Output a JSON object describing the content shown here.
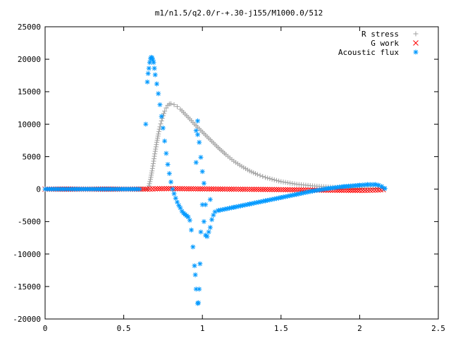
{
  "chart_data": {
    "type": "scatter",
    "title": "m1/n1.5/q2.0/r-+.30-j155/M1000.0/512",
    "xlabel": "",
    "ylabel": "",
    "xlim": [
      0,
      2.5
    ],
    "ylim": [
      -20000,
      25000
    ],
    "x_ticks": [
      0,
      0.5,
      1,
      1.5,
      2,
      2.5
    ],
    "y_ticks": [
      -20000,
      -15000,
      -10000,
      -5000,
      0,
      5000,
      10000,
      15000,
      20000,
      25000
    ],
    "grid": false,
    "legend_position": "top-right",
    "series": [
      {
        "name": "R stress",
        "marker": "plus",
        "color": "#a0a0a0",
        "points": [
          [
            0.0,
            0
          ],
          [
            0.1,
            0
          ],
          [
            0.2,
            0
          ],
          [
            0.3,
            0
          ],
          [
            0.4,
            0
          ],
          [
            0.5,
            0
          ],
          [
            0.6,
            0
          ],
          [
            0.65,
            0
          ],
          [
            0.66,
            500
          ],
          [
            0.67,
            1500
          ],
          [
            0.68,
            2800
          ],
          [
            0.69,
            4300
          ],
          [
            0.7,
            5800
          ],
          [
            0.71,
            7200
          ],
          [
            0.72,
            8500
          ],
          [
            0.73,
            9600
          ],
          [
            0.74,
            10500
          ],
          [
            0.75,
            11300
          ],
          [
            0.76,
            12000
          ],
          [
            0.77,
            12500
          ],
          [
            0.78,
            12900
          ],
          [
            0.79,
            13100
          ],
          [
            0.8,
            13150
          ],
          [
            0.82,
            13000
          ],
          [
            0.84,
            12700
          ],
          [
            0.86,
            12300
          ],
          [
            0.88,
            11800
          ],
          [
            0.9,
            11300
          ],
          [
            0.92,
            10800
          ],
          [
            0.95,
            10000
          ],
          [
            1.0,
            8800
          ],
          [
            1.05,
            7600
          ],
          [
            1.1,
            6400
          ],
          [
            1.15,
            5300
          ],
          [
            1.2,
            4300
          ],
          [
            1.25,
            3500
          ],
          [
            1.3,
            2800
          ],
          [
            1.35,
            2250
          ],
          [
            1.4,
            1800
          ],
          [
            1.5,
            1150
          ],
          [
            1.6,
            750
          ],
          [
            1.7,
            500
          ],
          [
            1.8,
            330
          ],
          [
            1.9,
            220
          ],
          [
            2.0,
            140
          ],
          [
            2.1,
            90
          ],
          [
            2.15,
            50
          ]
        ]
      },
      {
        "name": "G work",
        "marker": "cross",
        "color": "#ff0000",
        "points": [
          [
            0.0,
            0
          ],
          [
            0.65,
            0
          ],
          [
            0.7,
            50
          ],
          [
            0.8,
            80
          ],
          [
            0.9,
            50
          ],
          [
            1.0,
            30
          ],
          [
            1.1,
            10
          ],
          [
            1.2,
            -10
          ],
          [
            1.3,
            -30
          ],
          [
            1.4,
            -50
          ],
          [
            1.5,
            -80
          ],
          [
            1.6,
            -110
          ],
          [
            1.7,
            -140
          ],
          [
            1.8,
            -170
          ],
          [
            1.9,
            -190
          ],
          [
            2.0,
            -200
          ],
          [
            2.05,
            -190
          ],
          [
            2.1,
            -150
          ],
          [
            2.15,
            -80
          ]
        ]
      },
      {
        "name": "Acoustic flux",
        "marker": "star",
        "color": "#0099ff",
        "points": [
          [
            0.0,
            0
          ],
          [
            0.1,
            0
          ],
          [
            0.2,
            0
          ],
          [
            0.3,
            0
          ],
          [
            0.4,
            0
          ],
          [
            0.5,
            0
          ],
          [
            0.6,
            0
          ],
          [
            0.64,
            10000
          ],
          [
            0.65,
            16500
          ],
          [
            0.655,
            17800
          ],
          [
            0.66,
            18600
          ],
          [
            0.665,
            19500
          ],
          [
            0.67,
            20100
          ],
          [
            0.675,
            20300
          ],
          [
            0.68,
            20200
          ],
          [
            0.685,
            19900
          ],
          [
            0.69,
            19500
          ],
          [
            0.695,
            18600
          ],
          [
            0.7,
            17600
          ],
          [
            0.71,
            16200
          ],
          [
            0.72,
            14700
          ],
          [
            0.73,
            13000
          ],
          [
            0.74,
            11200
          ],
          [
            0.75,
            9400
          ],
          [
            0.76,
            7400
          ],
          [
            0.77,
            5500
          ],
          [
            0.78,
            3800
          ],
          [
            0.79,
            2400
          ],
          [
            0.8,
            1100
          ],
          [
            0.81,
            0
          ],
          [
            0.82,
            -700
          ],
          [
            0.83,
            -1400
          ],
          [
            0.84,
            -2000
          ],
          [
            0.85,
            -2500
          ],
          [
            0.86,
            -2900
          ],
          [
            0.87,
            -3400
          ],
          [
            0.88,
            -3700
          ],
          [
            0.89,
            -3900
          ],
          [
            0.9,
            -4100
          ],
          [
            0.91,
            -4300
          ],
          [
            0.92,
            -4800
          ],
          [
            0.93,
            -6300
          ],
          [
            0.94,
            -8900
          ],
          [
            0.95,
            -11800
          ],
          [
            0.955,
            -13200
          ],
          [
            0.96,
            -15400
          ],
          [
            0.97,
            -17600
          ],
          [
            0.975,
            -17500
          ],
          [
            0.98,
            -15400
          ],
          [
            0.985,
            -11500
          ],
          [
            0.99,
            -6600
          ],
          [
            1.0,
            -2400
          ],
          [
            1.01,
            -5000
          ],
          [
            1.02,
            -7100
          ],
          [
            1.03,
            -7300
          ],
          [
            1.04,
            -6600
          ],
          [
            1.05,
            -5900
          ],
          [
            1.06,
            -4700
          ],
          [
            1.07,
            -4000
          ],
          [
            1.08,
            -3500
          ],
          [
            0.96,
            9000
          ],
          [
            0.97,
            10500
          ],
          [
            0.98,
            7200
          ],
          [
            0.99,
            4900
          ],
          [
            1.0,
            2700
          ],
          [
            1.01,
            900
          ],
          [
            0.97,
            8400
          ],
          [
            0.96,
            4100
          ],
          [
            1.05,
            -1600
          ],
          [
            1.02,
            -2400
          ],
          [
            1.1,
            -3300
          ],
          [
            1.2,
            -2800
          ],
          [
            1.3,
            -2300
          ],
          [
            1.4,
            -1800
          ],
          [
            1.5,
            -1300
          ],
          [
            1.6,
            -800
          ],
          [
            1.7,
            -300
          ],
          [
            1.8,
            100
          ],
          [
            1.9,
            400
          ],
          [
            2.0,
            600
          ],
          [
            2.05,
            700
          ],
          [
            2.1,
            700
          ],
          [
            2.12,
            600
          ],
          [
            2.14,
            400
          ],
          [
            2.16,
            100
          ]
        ]
      }
    ]
  }
}
